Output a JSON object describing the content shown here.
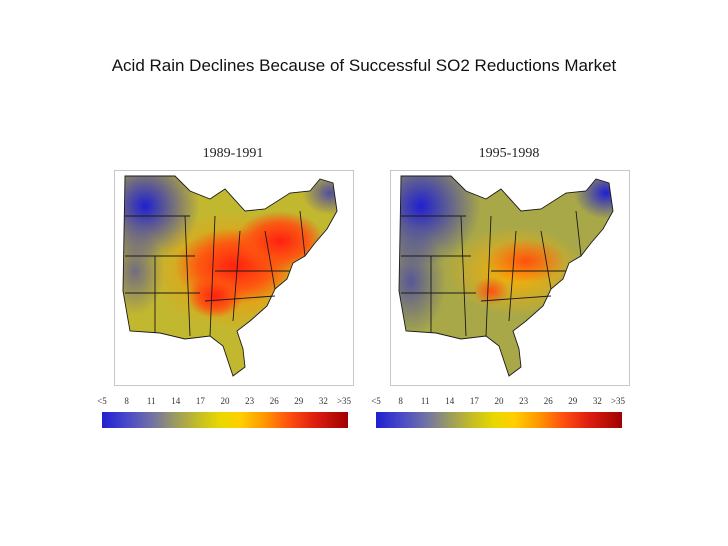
{
  "title": "Acid Rain Declines Because of Successful SO2 Reductions Market",
  "maps": [
    {
      "period": "1989-1991",
      "pattern": "high"
    },
    {
      "period": "1995-1998",
      "pattern": "reduced"
    }
  ],
  "legend": {
    "ticks": [
      "<5",
      "8",
      "11",
      "14",
      "17",
      "20",
      "23",
      "26",
      "29",
      "32",
      ">35"
    ]
  },
  "colors": {
    "low": "#2020d0",
    "mid": "#c8c020",
    "high": "#ff3010",
    "peak": "#a00000"
  }
}
